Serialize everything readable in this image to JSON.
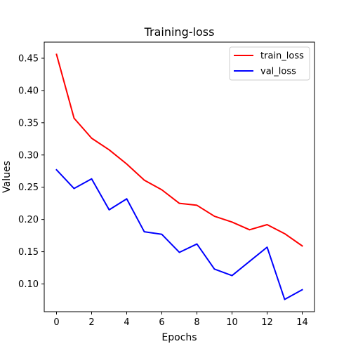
{
  "chart_data": {
    "type": "line",
    "title": "Training-loss",
    "xlabel": "Epochs",
    "ylabel": "Values",
    "x": [
      0,
      1,
      2,
      3,
      4,
      5,
      6,
      7,
      8,
      9,
      10,
      11,
      12,
      13,
      14
    ],
    "series": [
      {
        "name": "train_loss",
        "color": "#ff0000",
        "values": [
          0.456,
          0.357,
          0.326,
          0.308,
          0.286,
          0.261,
          0.246,
          0.225,
          0.222,
          0.205,
          0.196,
          0.184,
          0.192,
          0.178,
          0.159
        ]
      },
      {
        "name": "val_loss",
        "color": "#0000ff",
        "values": [
          0.277,
          0.248,
          0.263,
          0.215,
          0.232,
          0.181,
          0.177,
          0.149,
          0.162,
          0.123,
          0.113,
          0.135,
          0.157,
          0.076,
          0.091
        ]
      }
    ],
    "xlim": [
      -0.7,
      14.7
    ],
    "ylim": [
      0.057,
      0.475
    ],
    "xticks": [
      "0",
      "2",
      "4",
      "6",
      "8",
      "10",
      "12",
      "14"
    ],
    "yticks": [
      "0.10",
      "0.15",
      "0.20",
      "0.25",
      "0.30",
      "0.35",
      "0.40",
      "0.45"
    ],
    "grid": false,
    "legend_position": "top-right"
  }
}
